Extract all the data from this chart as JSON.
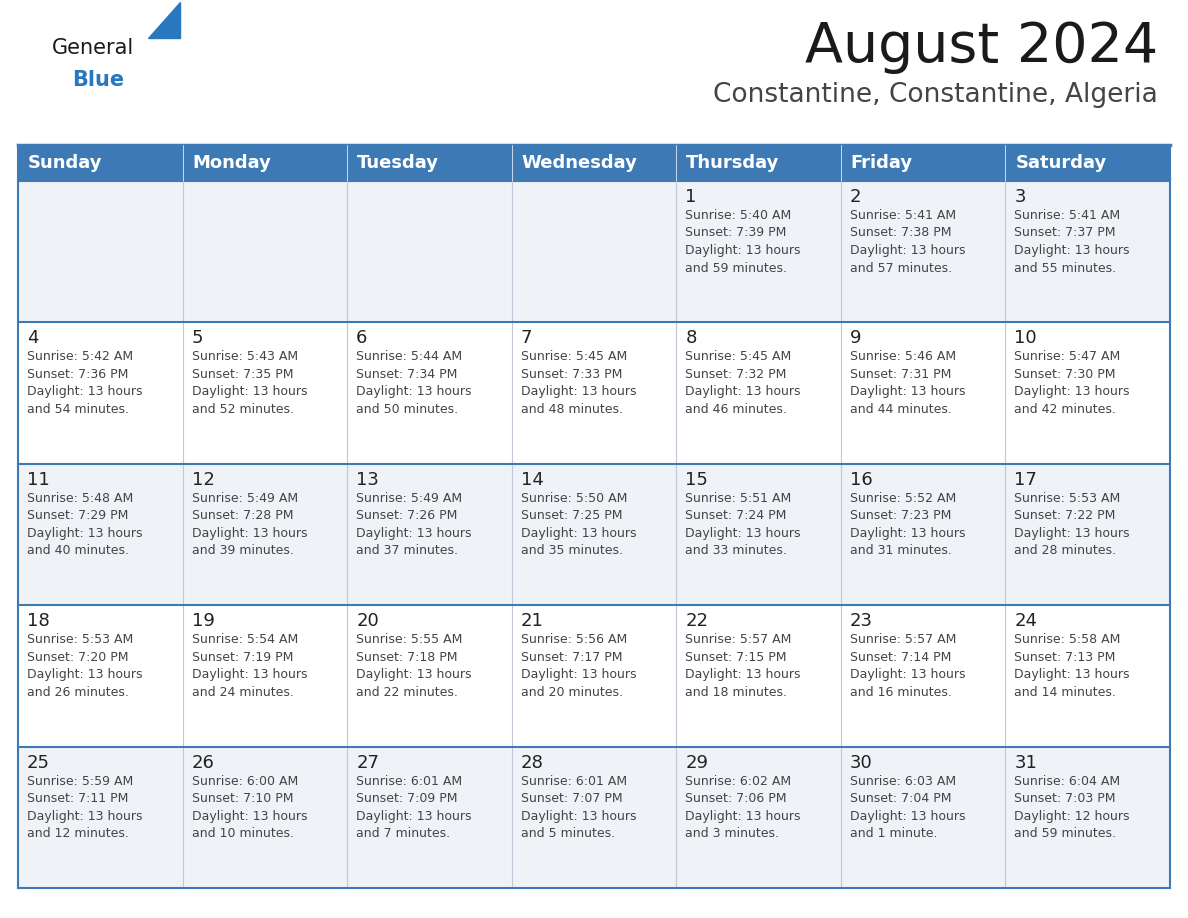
{
  "title": "August 2024",
  "subtitle": "Constantine, Constantine, Algeria",
  "days_of_week": [
    "Sunday",
    "Monday",
    "Tuesday",
    "Wednesday",
    "Thursday",
    "Friday",
    "Saturday"
  ],
  "header_bg": "#3d7ab5",
  "header_text": "#ffffff",
  "row_bg_odd": "#eff3f8",
  "row_bg_even": "#ffffff",
  "border_color": "#3d7ab5",
  "cell_border_color": "#c0c8d8",
  "text_color": "#444444",
  "day_num_color": "#222222",
  "title_color": "#1a1a1a",
  "subtitle_color": "#444444",
  "logo_general_color": "#1a1a1a",
  "logo_blue_color": "#2878c0",
  "weeks": [
    [
      {
        "day": null,
        "info": null
      },
      {
        "day": null,
        "info": null
      },
      {
        "day": null,
        "info": null
      },
      {
        "day": null,
        "info": null
      },
      {
        "day": 1,
        "info": "Sunrise: 5:40 AM\nSunset: 7:39 PM\nDaylight: 13 hours\nand 59 minutes."
      },
      {
        "day": 2,
        "info": "Sunrise: 5:41 AM\nSunset: 7:38 PM\nDaylight: 13 hours\nand 57 minutes."
      },
      {
        "day": 3,
        "info": "Sunrise: 5:41 AM\nSunset: 7:37 PM\nDaylight: 13 hours\nand 55 minutes."
      }
    ],
    [
      {
        "day": 4,
        "info": "Sunrise: 5:42 AM\nSunset: 7:36 PM\nDaylight: 13 hours\nand 54 minutes."
      },
      {
        "day": 5,
        "info": "Sunrise: 5:43 AM\nSunset: 7:35 PM\nDaylight: 13 hours\nand 52 minutes."
      },
      {
        "day": 6,
        "info": "Sunrise: 5:44 AM\nSunset: 7:34 PM\nDaylight: 13 hours\nand 50 minutes."
      },
      {
        "day": 7,
        "info": "Sunrise: 5:45 AM\nSunset: 7:33 PM\nDaylight: 13 hours\nand 48 minutes."
      },
      {
        "day": 8,
        "info": "Sunrise: 5:45 AM\nSunset: 7:32 PM\nDaylight: 13 hours\nand 46 minutes."
      },
      {
        "day": 9,
        "info": "Sunrise: 5:46 AM\nSunset: 7:31 PM\nDaylight: 13 hours\nand 44 minutes."
      },
      {
        "day": 10,
        "info": "Sunrise: 5:47 AM\nSunset: 7:30 PM\nDaylight: 13 hours\nand 42 minutes."
      }
    ],
    [
      {
        "day": 11,
        "info": "Sunrise: 5:48 AM\nSunset: 7:29 PM\nDaylight: 13 hours\nand 40 minutes."
      },
      {
        "day": 12,
        "info": "Sunrise: 5:49 AM\nSunset: 7:28 PM\nDaylight: 13 hours\nand 39 minutes."
      },
      {
        "day": 13,
        "info": "Sunrise: 5:49 AM\nSunset: 7:26 PM\nDaylight: 13 hours\nand 37 minutes."
      },
      {
        "day": 14,
        "info": "Sunrise: 5:50 AM\nSunset: 7:25 PM\nDaylight: 13 hours\nand 35 minutes."
      },
      {
        "day": 15,
        "info": "Sunrise: 5:51 AM\nSunset: 7:24 PM\nDaylight: 13 hours\nand 33 minutes."
      },
      {
        "day": 16,
        "info": "Sunrise: 5:52 AM\nSunset: 7:23 PM\nDaylight: 13 hours\nand 31 minutes."
      },
      {
        "day": 17,
        "info": "Sunrise: 5:53 AM\nSunset: 7:22 PM\nDaylight: 13 hours\nand 28 minutes."
      }
    ],
    [
      {
        "day": 18,
        "info": "Sunrise: 5:53 AM\nSunset: 7:20 PM\nDaylight: 13 hours\nand 26 minutes."
      },
      {
        "day": 19,
        "info": "Sunrise: 5:54 AM\nSunset: 7:19 PM\nDaylight: 13 hours\nand 24 minutes."
      },
      {
        "day": 20,
        "info": "Sunrise: 5:55 AM\nSunset: 7:18 PM\nDaylight: 13 hours\nand 22 minutes."
      },
      {
        "day": 21,
        "info": "Sunrise: 5:56 AM\nSunset: 7:17 PM\nDaylight: 13 hours\nand 20 minutes."
      },
      {
        "day": 22,
        "info": "Sunrise: 5:57 AM\nSunset: 7:15 PM\nDaylight: 13 hours\nand 18 minutes."
      },
      {
        "day": 23,
        "info": "Sunrise: 5:57 AM\nSunset: 7:14 PM\nDaylight: 13 hours\nand 16 minutes."
      },
      {
        "day": 24,
        "info": "Sunrise: 5:58 AM\nSunset: 7:13 PM\nDaylight: 13 hours\nand 14 minutes."
      }
    ],
    [
      {
        "day": 25,
        "info": "Sunrise: 5:59 AM\nSunset: 7:11 PM\nDaylight: 13 hours\nand 12 minutes."
      },
      {
        "day": 26,
        "info": "Sunrise: 6:00 AM\nSunset: 7:10 PM\nDaylight: 13 hours\nand 10 minutes."
      },
      {
        "day": 27,
        "info": "Sunrise: 6:01 AM\nSunset: 7:09 PM\nDaylight: 13 hours\nand 7 minutes."
      },
      {
        "day": 28,
        "info": "Sunrise: 6:01 AM\nSunset: 7:07 PM\nDaylight: 13 hours\nand 5 minutes."
      },
      {
        "day": 29,
        "info": "Sunrise: 6:02 AM\nSunset: 7:06 PM\nDaylight: 13 hours\nand 3 minutes."
      },
      {
        "day": 30,
        "info": "Sunrise: 6:03 AM\nSunset: 7:04 PM\nDaylight: 13 hours\nand 1 minute."
      },
      {
        "day": 31,
        "info": "Sunrise: 6:04 AM\nSunset: 7:03 PM\nDaylight: 12 hours\nand 59 minutes."
      }
    ]
  ]
}
